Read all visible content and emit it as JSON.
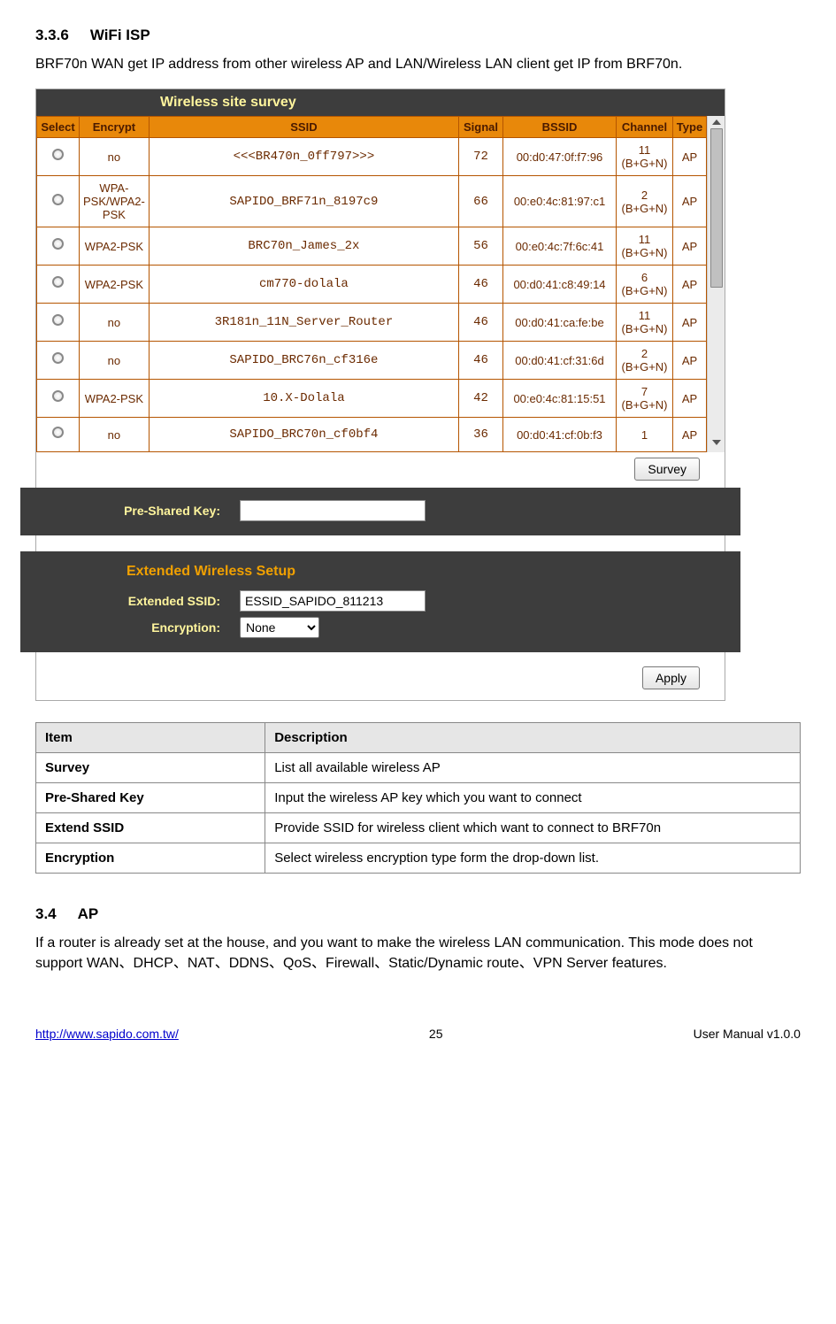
{
  "heading336": {
    "num": "3.3.6",
    "title": "WiFi ISP"
  },
  "intro336": "BRF70n WAN get IP address from other wireless AP and LAN/Wireless LAN client get IP from BRF70n.",
  "survey_title": "Wireless site survey",
  "survey_headers": [
    "Select",
    "Encrypt",
    "SSID",
    "Signal",
    "BSSID",
    "Channel",
    "Type"
  ],
  "survey_rows": [
    {
      "encrypt": "no",
      "ssid": "<<<BR470n_0ff797>>>",
      "signal": "72",
      "bssid": "00:d0:47:0f:f7:96",
      "channel": "11\n(B+G+N)",
      "type": "AP"
    },
    {
      "encrypt": "WPA-PSK/WPA2-PSK",
      "ssid": "SAPIDO_BRF71n_8197c9",
      "signal": "66",
      "bssid": "00:e0:4c:81:97:c1",
      "channel": "2\n(B+G+N)",
      "type": "AP"
    },
    {
      "encrypt": "WPA2-PSK",
      "ssid": "BRC70n_James_2x",
      "signal": "56",
      "bssid": "00:e0:4c:7f:6c:41",
      "channel": "11\n(B+G+N)",
      "type": "AP"
    },
    {
      "encrypt": "WPA2-PSK",
      "ssid": "cm770-dolala",
      "signal": "46",
      "bssid": "00:d0:41:c8:49:14",
      "channel": "6\n(B+G+N)",
      "type": "AP"
    },
    {
      "encrypt": "no",
      "ssid": "3R181n_11N_Server_Router",
      "signal": "46",
      "bssid": "00:d0:41:ca:fe:be",
      "channel": "11\n(B+G+N)",
      "type": "AP"
    },
    {
      "encrypt": "no",
      "ssid": "SAPIDO_BRC76n_cf316e",
      "signal": "46",
      "bssid": "00:d0:41:cf:31:6d",
      "channel": "2\n(B+G+N)",
      "type": "AP"
    },
    {
      "encrypt": "WPA2-PSK",
      "ssid": "10.X-Dolala",
      "signal": "42",
      "bssid": "00:e0:4c:81:15:51",
      "channel": "7\n(B+G+N)",
      "type": "AP"
    },
    {
      "encrypt": "no",
      "ssid": "SAPIDO_BRC70n_cf0bf4",
      "signal": "36",
      "bssid": "00:d0:41:cf:0b:f3",
      "channel": "1\n(B+G+N)",
      "type": "AP"
    }
  ],
  "survey_button": "Survey",
  "psk_label": "Pre-Shared Key:",
  "psk_value": "",
  "ext_title": "Extended Wireless Setup",
  "ext_ssid_label": "Extended SSID:",
  "ext_ssid_value": "ESSID_SAPIDO_811213",
  "enc_label": "Encryption:",
  "enc_value": "None",
  "apply_button": "Apply",
  "desc_headers": {
    "item": "Item",
    "desc": "Description"
  },
  "desc_rows": [
    {
      "item": "Survey",
      "desc": "List all available wireless AP"
    },
    {
      "item": "Pre-Shared Key",
      "desc": "Input the wireless AP key which you want to connect"
    },
    {
      "item": "Extend SSID",
      "desc": "Provide SSID for wireless client which want to connect to BRF70n"
    },
    {
      "item": "Encryption",
      "desc": "Select wireless encryption type form the drop-down list."
    }
  ],
  "heading34": {
    "num": "3.4",
    "title": "AP"
  },
  "intro34": "If a router is already set at the house, and you want to make the wireless LAN communication. This mode does not support WAN、DHCP、NAT、DDNS、QoS、Firewall、Static/Dynamic route、VPN Server features.",
  "footer": {
    "url": "http://www.sapido.com.tw/",
    "page": "25",
    "right": "User Manual v1.0.0"
  }
}
